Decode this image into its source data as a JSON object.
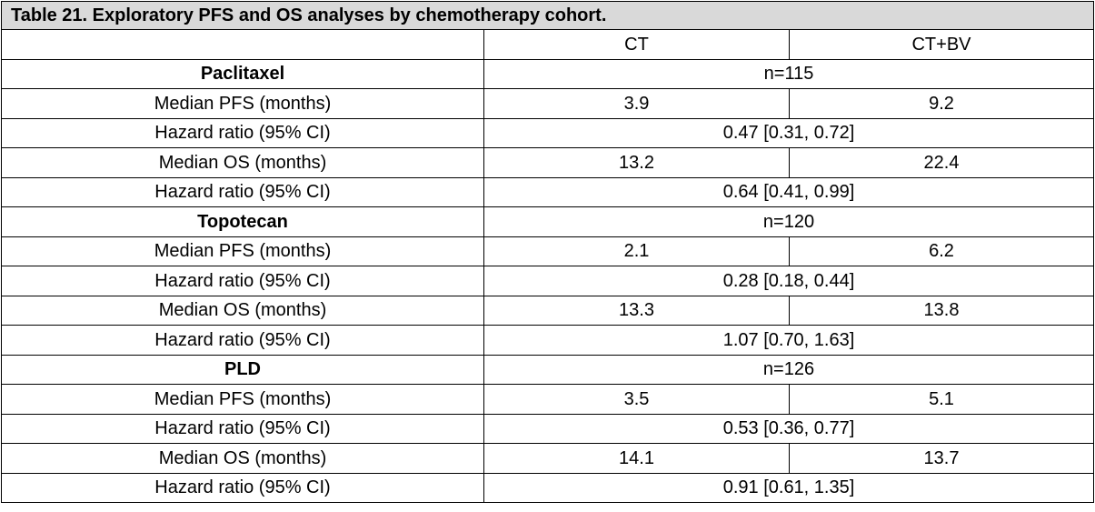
{
  "table": {
    "caption": "Table 21. Exploratory PFS and OS analyses by chemotherapy cohort.",
    "header": {
      "blank": "",
      "col1": "CT",
      "col2": "CT+BV"
    },
    "cohorts": [
      {
        "name": "Paclitaxel",
        "n": "n=115",
        "rows": [
          {
            "label": "Median PFS (months)",
            "ct": "3.9",
            "ctbv": "9.2"
          },
          {
            "label": "Hazard ratio (95% CI)",
            "merged": "0.47 [0.31, 0.72]"
          },
          {
            "label": "Median OS (months)",
            "ct": "13.2",
            "ctbv": "22.4"
          },
          {
            "label": "Hazard ratio (95% CI)",
            "merged": "0.64 [0.41, 0.99]"
          }
        ]
      },
      {
        "name": "Topotecan",
        "n": "n=120",
        "rows": [
          {
            "label": "Median PFS (months)",
            "ct": "2.1",
            "ctbv": "6.2"
          },
          {
            "label": "Hazard ratio (95% CI)",
            "merged": "0.28 [0.18, 0.44]"
          },
          {
            "label": "Median OS (months)",
            "ct": "13.3",
            "ctbv": "13.8"
          },
          {
            "label": "Hazard ratio (95% CI)",
            "merged": "1.07 [0.70, 1.63]"
          }
        ]
      },
      {
        "name": "PLD",
        "n": "n=126",
        "rows": [
          {
            "label": "Median PFS (months)",
            "ct": "3.5",
            "ctbv": "5.1"
          },
          {
            "label": "Hazard ratio (95% CI)",
            "merged": "0.53 [0.36, 0.77]"
          },
          {
            "label": "Median OS (months)",
            "ct": "14.1",
            "ctbv": "13.7"
          },
          {
            "label": "Hazard ratio (95% CI)",
            "merged": "0.91 [0.61, 1.35]"
          }
        ]
      }
    ]
  }
}
